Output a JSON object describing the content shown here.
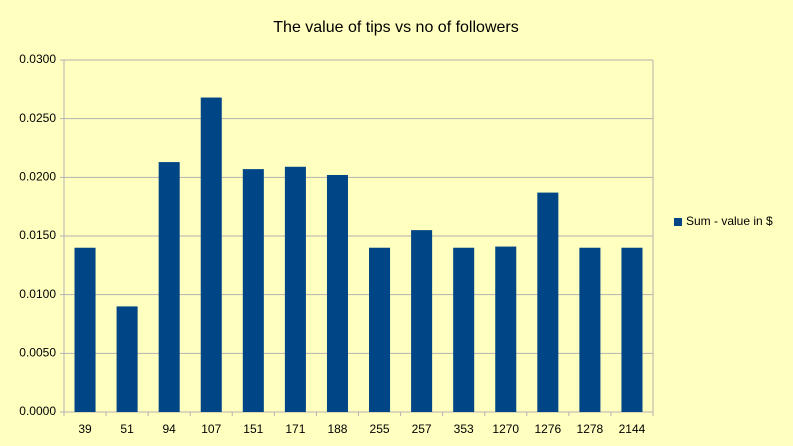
{
  "chart_data": {
    "type": "bar",
    "title": "The value of tips vs no of followers",
    "categories": [
      "39",
      "51",
      "94",
      "107",
      "151",
      "171",
      "188",
      "255",
      "257",
      "353",
      "1270",
      "1276",
      "1278",
      "2144"
    ],
    "series": [
      {
        "name": "Sum - value in $",
        "color": "#004586",
        "values": [
          0.014,
          0.009,
          0.0213,
          0.0268,
          0.0207,
          0.0209,
          0.0202,
          0.014,
          0.0155,
          0.014,
          0.0141,
          0.0187,
          0.014,
          0.014
        ]
      }
    ],
    "ylim": [
      0,
      0.03
    ],
    "yticks": [
      {
        "value": 0,
        "label": "0.0000"
      },
      {
        "value": 0.005,
        "label": "0.0050"
      },
      {
        "value": 0.01,
        "label": "0.0100"
      },
      {
        "value": 0.015,
        "label": "0.0150"
      },
      {
        "value": 0.02,
        "label": "0.0200"
      },
      {
        "value": 0.025,
        "label": "0.0250"
      },
      {
        "value": 0.03,
        "label": "0.0300"
      }
    ],
    "grid": true,
    "legend": "right"
  }
}
